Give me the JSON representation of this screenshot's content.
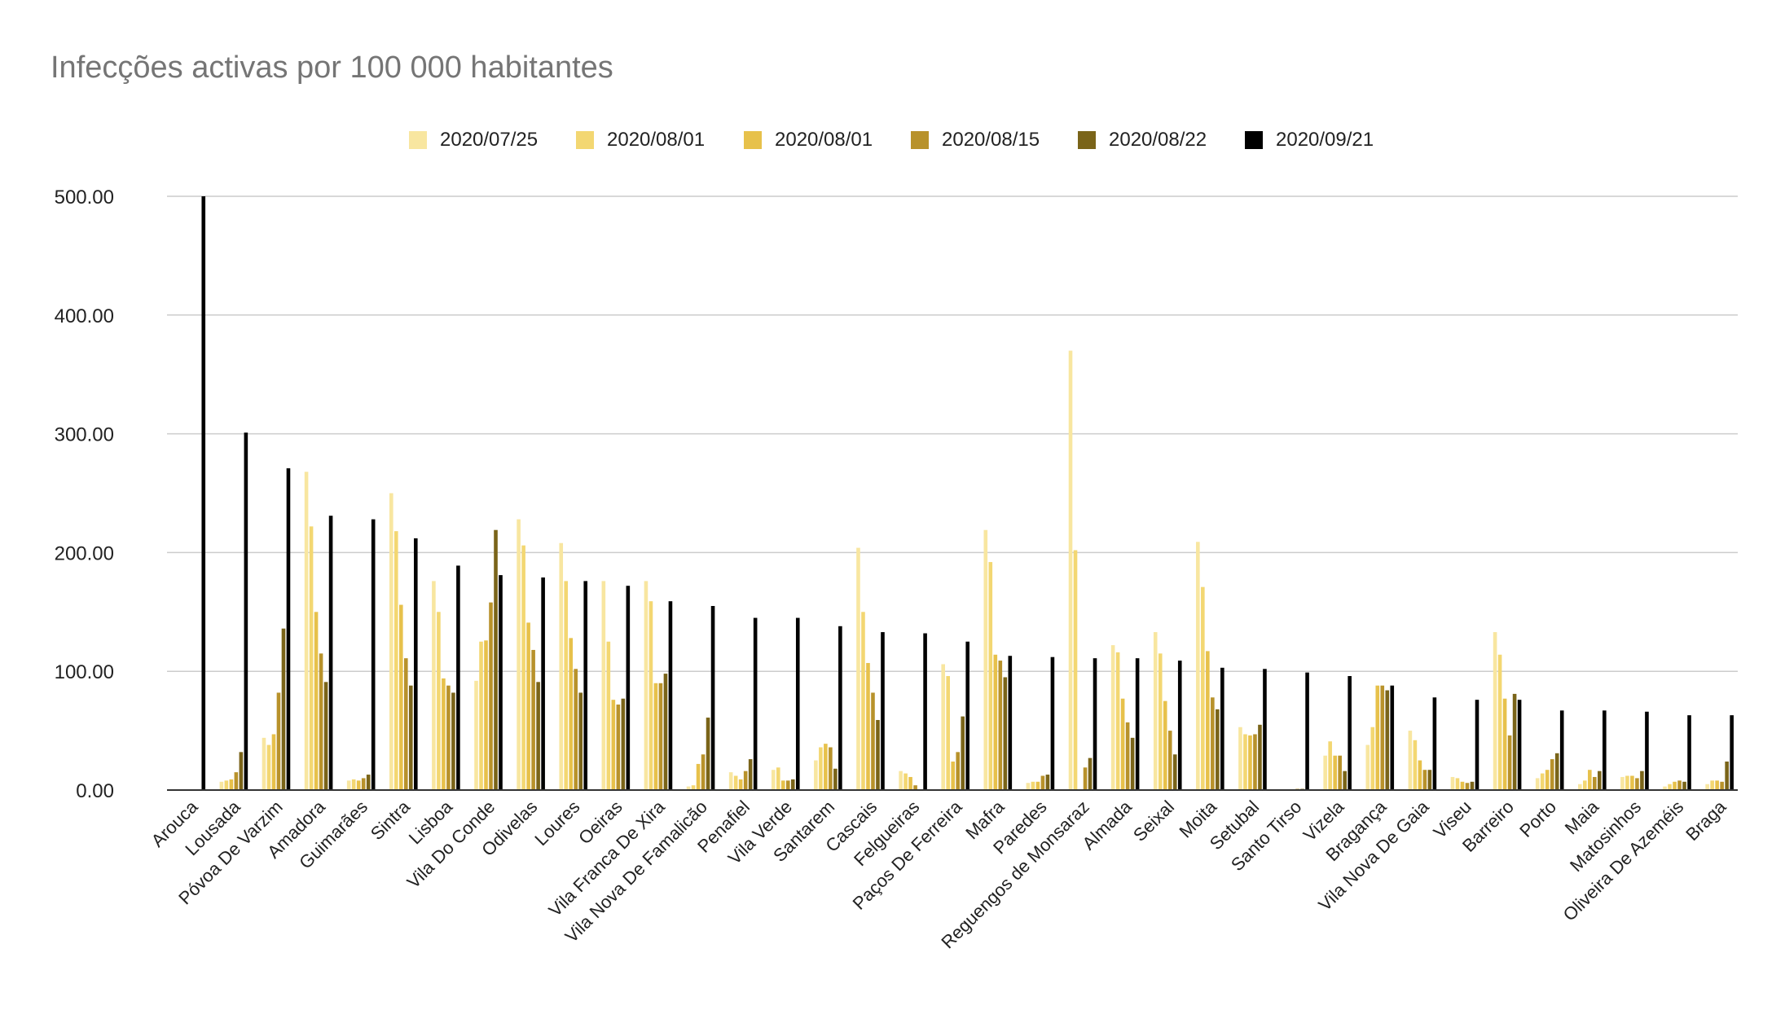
{
  "chart_data": {
    "type": "bar",
    "title": "Infecções activas por 100 000 habitantes",
    "xlabel": "",
    "ylabel": "",
    "ylim": [
      0,
      500
    ],
    "yticks": [
      "0.00",
      "100.00",
      "200.00",
      "300.00",
      "400.00",
      "500.00"
    ],
    "grid": true,
    "legend_position": "top",
    "categories": [
      "Arouca",
      "Lousada",
      "Póvoa De Varzim",
      "Amadora",
      "Guimarães",
      "Sintra",
      "Lisboa",
      "Vila Do Conde",
      "Odivelas",
      "Loures",
      "Oeiras",
      "Vila Franca De Xira",
      "Vila Nova De Famalicão",
      "Penafiel",
      "Vila Verde",
      "Santarem",
      "Cascais",
      "Felgueiras",
      "Paços De Ferreira",
      "Mafra",
      "Paredes",
      "Reguengos de Monsaraz",
      "Almada",
      "Seixal",
      "Moita",
      "Setubal",
      "Santo Tirso",
      "Vizela",
      "Bragança",
      "Vila Nova De Gaia",
      "Viseu",
      "Barreiro",
      "Porto",
      "Maia",
      "Matosinhos",
      "Oliveira De Azeméis",
      "Braga"
    ],
    "series": [
      {
        "name": "2020/07/25",
        "color": "#f8e6a0",
        "values": [
          0,
          7,
          44,
          268,
          8,
          250,
          176,
          92,
          228,
          208,
          176,
          176,
          3,
          15,
          17,
          25,
          204,
          16,
          106,
          219,
          6,
          370,
          122,
          133,
          209,
          53,
          0,
          29,
          38,
          50,
          11,
          133,
          10,
          5,
          11,
          3,
          5
        ]
      },
      {
        "name": "2020/08/01",
        "color": "#f3d772",
        "values": [
          0,
          8,
          38,
          222,
          9,
          218,
          150,
          125,
          206,
          176,
          125,
          159,
          4,
          12,
          19,
          36,
          150,
          14,
          96,
          192,
          7,
          202,
          116,
          115,
          171,
          47,
          0,
          41,
          53,
          42,
          10,
          114,
          14,
          8,
          12,
          5,
          8
        ]
      },
      {
        "name": "2020/08/01 ",
        "color": "#e7c14b",
        "values": [
          0,
          9,
          47,
          150,
          8,
          156,
          94,
          126,
          141,
          128,
          76,
          90,
          22,
          9,
          8,
          39,
          107,
          11,
          24,
          114,
          7,
          0,
          77,
          75,
          117,
          46,
          0,
          29,
          88,
          25,
          7,
          77,
          17,
          17,
          12,
          7,
          8
        ]
      },
      {
        "name": "2020/08/15",
        "color": "#b8922b",
        "values": [
          0,
          15,
          82,
          115,
          10,
          111,
          88,
          158,
          118,
          102,
          72,
          90,
          30,
          16,
          8,
          36,
          82,
          4,
          32,
          109,
          12,
          19,
          57,
          50,
          78,
          47,
          1,
          29,
          88,
          17,
          6,
          46,
          26,
          11,
          10,
          8,
          7
        ]
      },
      {
        "name": "2020/08/22",
        "color": "#7a6419",
        "values": [
          0,
          32,
          136,
          91,
          13,
          88,
          82,
          219,
          91,
          82,
          77,
          98,
          61,
          26,
          9,
          18,
          59,
          0,
          62,
          95,
          13,
          27,
          44,
          30,
          68,
          55,
          1,
          16,
          84,
          17,
          7,
          81,
          31,
          16,
          16,
          7,
          24
        ]
      },
      {
        "name": "2020/09/21",
        "color": "#000000",
        "values": [
          500,
          301,
          271,
          231,
          228,
          212,
          189,
          181,
          179,
          176,
          172,
          159,
          155,
          145,
          145,
          138,
          133,
          132,
          125,
          113,
          112,
          111,
          111,
          109,
          103,
          102,
          99,
          96,
          88,
          78,
          76,
          76,
          67,
          67,
          66,
          63,
          63
        ]
      }
    ]
  }
}
